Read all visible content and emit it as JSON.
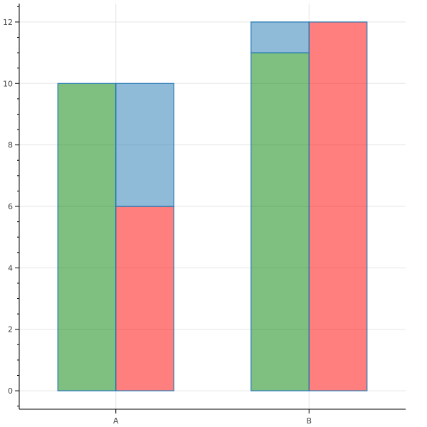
{
  "chart_data": {
    "type": "bar",
    "categories": [
      "A",
      "B"
    ],
    "yticks": [
      0,
      2,
      4,
      6,
      8,
      10,
      12
    ],
    "ylim": [
      -0.6,
      12.6
    ],
    "grid": true,
    "groups": [
      {
        "category": "A",
        "bars": [
          {
            "segments": [
              {
                "y0": 0,
                "y1": 10,
                "color": "#008000"
              }
            ]
          },
          {
            "segments": [
              {
                "y0": 0,
                "y1": 6,
                "color": "#ff0000"
              },
              {
                "y0": 6,
                "y1": 10,
                "color": "#1f77b4"
              }
            ]
          }
        ]
      },
      {
        "category": "B",
        "bars": [
          {
            "segments": [
              {
                "y0": 0,
                "y1": 11,
                "color": "#008000"
              },
              {
                "y0": 11,
                "y1": 12,
                "color": "#1f77b4"
              }
            ]
          },
          {
            "segments": [
              {
                "y0": 0,
                "y1": 12,
                "color": "#ff0000"
              }
            ]
          }
        ]
      }
    ],
    "colors": {
      "green": "#008000",
      "red": "#ff0000",
      "blue": "#1f77b4",
      "outline": "#1f77b4",
      "grid": "#e5e5e5",
      "axis": "#000000"
    }
  }
}
